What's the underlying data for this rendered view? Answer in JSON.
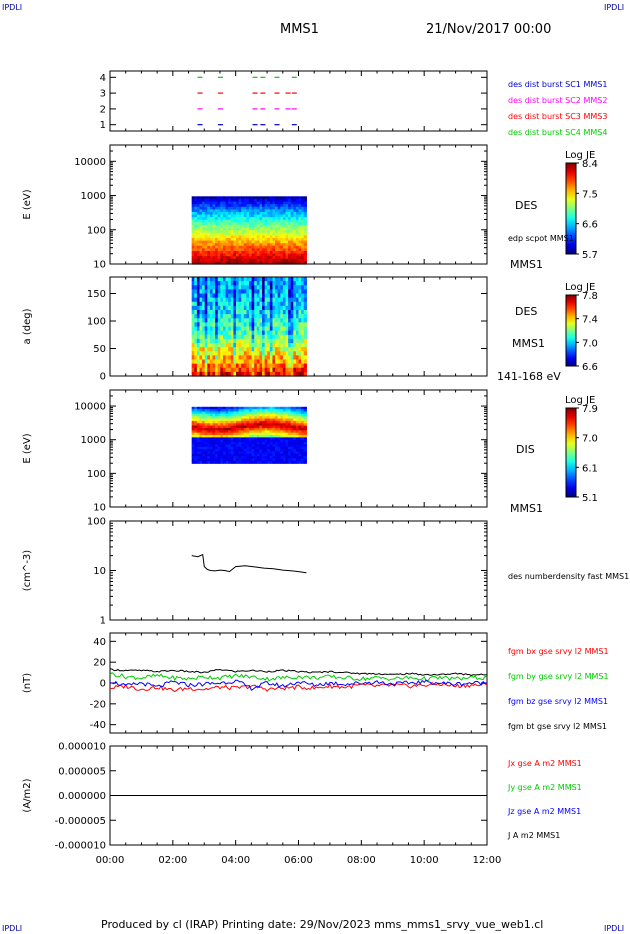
{
  "header": {
    "corner_label": "IPDLI",
    "spacecraft": "MMS1",
    "datetime": "21/Nov/2017 00:00"
  },
  "footer": {
    "text": "Produced by cl (IRAP)   Printing date: 29/Nov/2023   mms_mms1_srvy_vue_web1.cl"
  },
  "colors": {
    "red": "#ff0000",
    "green": "#00cc00",
    "blue": "#0000ff",
    "magenta": "#ff00ff",
    "black": "#000000"
  },
  "chart_data": [
    {
      "id": "burst",
      "type": "scatter",
      "yticks": [
        "1",
        "2",
        "3",
        "4"
      ],
      "ylim": [
        0.6,
        4.4
      ],
      "legend": [
        {
          "text": "des dist burst SC1 MMS1",
          "color": "#0000cc"
        },
        {
          "text": "des dist burst SC2 MMS2",
          "color": "#ff00ff"
        },
        {
          "text": "des dist burst SC3 MMS3",
          "color": "#ff0000"
        },
        {
          "text": "des dist burst SC4 MMS4",
          "color": "#00cc00"
        }
      ],
      "series": [
        {
          "level": 4,
          "color": "#00cc00",
          "x_hours": [
            2.85,
            3.5,
            4.6,
            4.85,
            5.3,
            5.85
          ]
        },
        {
          "level": 3,
          "color": "#ff0000",
          "x_hours": [
            2.85,
            3.5,
            4.6,
            4.85,
            5.3,
            5.65,
            5.85
          ]
        },
        {
          "level": 2,
          "color": "#ff00ff",
          "x_hours": [
            2.85,
            3.5,
            4.6,
            4.85,
            5.3,
            5.65,
            5.85
          ]
        },
        {
          "level": 1,
          "color": "#0000cc",
          "x_hours": [
            2.85,
            3.5,
            4.6,
            4.85,
            5.3,
            5.85
          ]
        }
      ]
    },
    {
      "id": "des-energy",
      "type": "heatmap",
      "ylabel": "E (eV)",
      "yscale": "log",
      "ylim": [
        10,
        30000
      ],
      "ytick_values": [
        10,
        100,
        1000,
        10000
      ],
      "yticks": [
        "10",
        "100",
        "1000",
        "10000"
      ],
      "x_range_hours": [
        2.6,
        6.25
      ],
      "side_labels": [
        "DES",
        "edp scpot MMS1",
        "MMS1"
      ],
      "colorbar": {
        "title": "Log JE",
        "ticks": [
          "8.4",
          "7.5",
          "6.6",
          "5.7"
        ]
      }
    },
    {
      "id": "des-pitch",
      "type": "heatmap",
      "ylabel": "a (deg)",
      "ylim": [
        0,
        180
      ],
      "ytick_values": [
        0,
        50,
        100,
        150
      ],
      "yticks": [
        "0",
        "50",
        "100",
        "150"
      ],
      "x_range_hours": [
        2.6,
        6.25
      ],
      "side_labels": [
        "DES",
        "MMS1",
        "141-168 eV"
      ],
      "colorbar": {
        "title": "Log JE",
        "ticks": [
          "7.8",
          "7.4",
          "7.0",
          "6.6"
        ]
      }
    },
    {
      "id": "dis-energy",
      "type": "heatmap",
      "ylabel": "E (eV)",
      "yscale": "log",
      "ylim": [
        10,
        30000
      ],
      "ytick_values": [
        10,
        100,
        1000,
        10000
      ],
      "yticks": [
        "10",
        "100",
        "1000",
        "10000"
      ],
      "x_range_hours": [
        2.6,
        6.25
      ],
      "side_labels": [
        "DIS",
        "MMS1"
      ],
      "colorbar": {
        "title": "Log JE",
        "ticks": [
          "7.9",
          "7.0",
          "6.1",
          "5.1"
        ]
      }
    },
    {
      "id": "density",
      "type": "line",
      "ylabel": "(cm^-3)",
      "yscale": "log",
      "ylim": [
        1,
        100
      ],
      "ytick_values": [
        1,
        10,
        100
      ],
      "yticks": [
        "1",
        "10",
        "100"
      ],
      "legend": [
        {
          "text": "des numberdensity fast MMS1",
          "color": "#000000"
        }
      ],
      "x": [
        2.6,
        2.8,
        2.95,
        3.0,
        3.1,
        3.2,
        3.35,
        3.5,
        3.65,
        3.8,
        4.0,
        4.3,
        4.6,
        4.9,
        5.2,
        5.5,
        5.8,
        6.0,
        6.25
      ],
      "y": [
        20,
        19,
        21,
        12,
        10.5,
        10,
        9.8,
        10.2,
        10,
        9.5,
        12,
        12.5,
        11.8,
        11.2,
        10.8,
        10.2,
        9.8,
        9.5,
        9.0
      ]
    },
    {
      "id": "magnetic-field",
      "type": "line",
      "ylabel": "(nT)",
      "ylim": [
        -48,
        48
      ],
      "ytick_values": [
        -40,
        -20,
        0,
        20,
        40
      ],
      "yticks": [
        "-40",
        "-20",
        "0",
        "20",
        "40"
      ],
      "legend": [
        {
          "text": "fgm bx gse srvy l2 MMS1",
          "color": "#ff0000"
        },
        {
          "text": "fgm by gse srvy l2 MMS1",
          "color": "#00cc00"
        },
        {
          "text": "fgm bz gse srvy l2 MMS1",
          "color": "#0000ff"
        },
        {
          "text": "fgm bt gse srvy l2 MMS1",
          "color": "#000000"
        }
      ],
      "x": [
        0,
        0.5,
        1,
        1.5,
        2,
        2.5,
        3,
        3.5,
        4,
        4.5,
        5,
        5.5,
        6,
        6.5,
        7,
        7.5,
        8,
        8.5,
        9,
        9.5,
        10,
        10.5,
        11,
        11.5,
        12
      ],
      "series": [
        {
          "name": "bx",
          "color": "#ff0000",
          "values": [
            -5,
            -3,
            -6,
            -4,
            -7,
            -5,
            -6,
            -4,
            -5,
            -3,
            -6,
            -5,
            -4,
            -5,
            -3,
            -4,
            -2,
            -3,
            -2,
            -3,
            -2,
            -1,
            -3,
            -2,
            -2
          ]
        },
        {
          "name": "by",
          "color": "#00cc00",
          "values": [
            9,
            6,
            5,
            7,
            5,
            4,
            6,
            5,
            7,
            6,
            4,
            5,
            6,
            5,
            6,
            5,
            4,
            5,
            4,
            5,
            4,
            5,
            4,
            5,
            5
          ]
        },
        {
          "name": "bz",
          "color": "#0000ff",
          "values": [
            2,
            -3,
            0,
            -4,
            1,
            -2,
            -1,
            0,
            2,
            -5,
            0,
            -3,
            1,
            -2,
            0,
            -1,
            0,
            1,
            -1,
            0,
            1,
            0,
            -1,
            0,
            0
          ]
        },
        {
          "name": "bt",
          "color": "#000000",
          "values": [
            13,
            12,
            12,
            11,
            12,
            11,
            10,
            13,
            11,
            12,
            11,
            12,
            11,
            10,
            11,
            10,
            9,
            9,
            8,
            9,
            8,
            8,
            9,
            8,
            8
          ]
        }
      ]
    },
    {
      "id": "current-density",
      "type": "line",
      "ylabel": "(A/m2)",
      "ylim": [
        -1e-05,
        1e-05
      ],
      "ytick_values": [
        -1e-05,
        -5e-06,
        0,
        5e-06,
        1e-05
      ],
      "yticks": [
        "-0.000010",
        "-0.000005",
        "0.000000",
        "0.000005",
        "0.000010"
      ],
      "legend": [
        {
          "text": "Jx gse A m2 MMS1",
          "color": "#ff0000"
        },
        {
          "text": "Jy gse A m2 MMS1",
          "color": "#00cc00"
        },
        {
          "text": "Jz gse A m2 MMS1",
          "color": "#0000ff"
        },
        {
          "text": "J A m2 MMS1",
          "color": "#000000"
        }
      ],
      "x": [
        0,
        12
      ],
      "series": [
        {
          "name": "J",
          "color": "#000000",
          "values": [
            0,
            0
          ]
        }
      ]
    }
  ],
  "time_axis": {
    "range_hours": [
      0,
      12
    ],
    "tick_values": [
      0,
      2,
      4,
      6,
      8,
      10,
      12
    ],
    "tick_labels": [
      "00:00",
      "02:00",
      "04:00",
      "06:00",
      "08:00",
      "10:00",
      "12:00"
    ]
  }
}
